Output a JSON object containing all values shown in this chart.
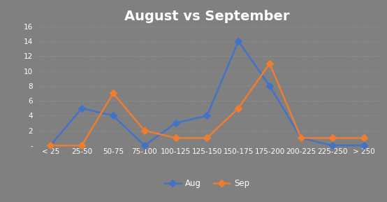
{
  "title": "August vs September",
  "categories": [
    "< 25",
    "25-50",
    "50-75",
    "75-100",
    "100-125",
    "125-150",
    "150-175",
    "175-200",
    "200-225",
    "225-250",
    "> 250"
  ],
  "aug": [
    0,
    5,
    4,
    0,
    3,
    4,
    14,
    8,
    1,
    0,
    0
  ],
  "sep": [
    0,
    0,
    7,
    2,
    1,
    1,
    5,
    11,
    1,
    1,
    1
  ],
  "aug_color": "#4472C4",
  "sep_color": "#ED7D31",
  "background_color": "#808080",
  "plot_bg_color": "#808080",
  "title_color": "#FFFFFF",
  "tick_color": "#FFFFFF",
  "grid_color": "#909090",
  "ylim_min": 0,
  "ylim_max": 16,
  "yticks": [
    0,
    2,
    4,
    6,
    8,
    10,
    12,
    14,
    16
  ],
  "ytick_labels": [
    "-",
    "2",
    "4",
    "6",
    "8",
    "10",
    "12",
    "14",
    "16"
  ],
  "legend_labels": [
    "Aug",
    "Sep"
  ],
  "marker": "D",
  "markersize": 5,
  "linewidth": 1.8,
  "title_fontsize": 14,
  "tick_fontsize": 7.5,
  "legend_fontsize": 8.5
}
